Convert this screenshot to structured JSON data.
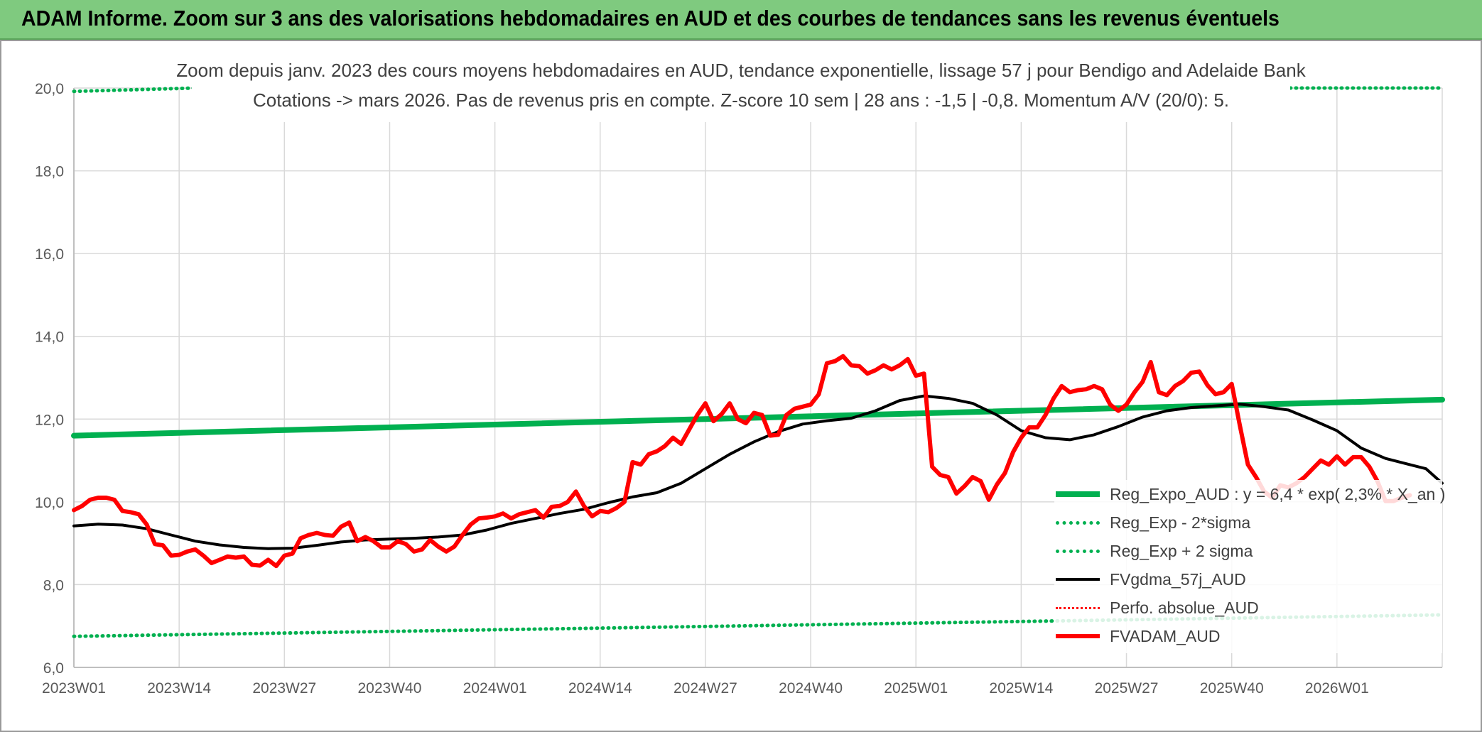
{
  "banner": {
    "title": "ADAM Informe. Zoom sur 3 ans des valorisations hebdomadaires en AUD et des courbes de tendances sans les revenus éventuels"
  },
  "colors": {
    "banner_bg": "#7fca7f",
    "reg_expo": "#00b050",
    "fvgdma": "#000000",
    "perfo": "#ff0000",
    "fvadam": "#ff0000",
    "grid": "#d9d9d9"
  },
  "chart_data": {
    "type": "line",
    "title_line1": "Zoom depuis janv. 2023 des cours moyens hebdomadaires en AUD, tendance exponentielle, lissage 57 j pour Bendigo and Adelaide Bank",
    "title_line2": "Cotations -> mars 2026. Pas de revenus pris en compte. Z-score 10 sem | 28 ans : -1,5 | -0,8. Momentum A/V (20/0): 5.",
    "xlabel": "",
    "ylabel": "",
    "ylim": [
      6.0,
      20.0
    ],
    "yticks": [
      "20,0",
      "18,0",
      "16,0",
      "14,0",
      "12,0",
      "10,0",
      "8,0",
      "6,0"
    ],
    "xticks": [
      "2023W01",
      "2023W14",
      "2023W27",
      "2023W40",
      "2024W01",
      "2024W14",
      "2024W27",
      "2024W40",
      "2025W01",
      "2025W14",
      "2025W27",
      "2025W40",
      "2026W01"
    ],
    "x_range_weeks": [
      0,
      169
    ],
    "grid": true,
    "legend_position": "bottom-right",
    "series": [
      {
        "name": "Reg_Expo_AUD : y = 6,4 * exp( 2,3% *  X_an )",
        "style": "solid-thick",
        "points": [
          [
            0,
            11.6
          ],
          [
            169,
            12.47
          ]
        ]
      },
      {
        "name": "Reg_Exp - 2*sigma",
        "style": "dotted",
        "points": [
          [
            0,
            6.75
          ],
          [
            169,
            7.27
          ]
        ]
      },
      {
        "name": "Reg_Exp + 2 sigma",
        "style": "dotted",
        "points": [
          [
            0,
            19.92
          ],
          [
            15,
            20.0
          ],
          [
            169,
            20.0
          ]
        ]
      },
      {
        "name": "FVgdma_57j_AUD",
        "style": "solid",
        "points": [
          [
            0,
            9.42
          ],
          [
            3,
            9.46
          ],
          [
            6,
            9.44
          ],
          [
            9,
            9.35
          ],
          [
            12,
            9.2
          ],
          [
            15,
            9.05
          ],
          [
            18,
            8.96
          ],
          [
            21,
            8.9
          ],
          [
            24,
            8.87
          ],
          [
            27,
            8.88
          ],
          [
            30,
            8.95
          ],
          [
            33,
            9.03
          ],
          [
            36,
            9.08
          ],
          [
            39,
            9.1
          ],
          [
            42,
            9.12
          ],
          [
            45,
            9.15
          ],
          [
            48,
            9.2
          ],
          [
            51,
            9.32
          ],
          [
            54,
            9.48
          ],
          [
            57,
            9.6
          ],
          [
            60,
            9.72
          ],
          [
            63,
            9.82
          ],
          [
            66,
            9.98
          ],
          [
            69,
            10.12
          ],
          [
            72,
            10.22
          ],
          [
            75,
            10.45
          ],
          [
            78,
            10.8
          ],
          [
            81,
            11.15
          ],
          [
            84,
            11.45
          ],
          [
            87,
            11.7
          ],
          [
            90,
            11.88
          ],
          [
            93,
            11.96
          ],
          [
            96,
            12.02
          ],
          [
            99,
            12.2
          ],
          [
            102,
            12.45
          ],
          [
            105,
            12.56
          ],
          [
            108,
            12.5
          ],
          [
            111,
            12.38
          ],
          [
            114,
            12.1
          ],
          [
            117,
            11.72
          ],
          [
            120,
            11.55
          ],
          [
            123,
            11.5
          ],
          [
            126,
            11.62
          ],
          [
            129,
            11.82
          ],
          [
            132,
            12.05
          ],
          [
            135,
            12.2
          ],
          [
            138,
            12.28
          ],
          [
            141,
            12.32
          ],
          [
            144,
            12.36
          ],
          [
            147,
            12.3
          ],
          [
            150,
            12.22
          ],
          [
            153,
            11.98
          ],
          [
            156,
            11.72
          ],
          [
            159,
            11.3
          ],
          [
            162,
            11.05
          ],
          [
            165,
            10.9
          ],
          [
            167,
            10.8
          ],
          [
            169,
            10.45
          ]
        ]
      },
      {
        "name": "Perfo. absolue_AUD",
        "style": "dotted",
        "points": []
      },
      {
        "name": "FVADAM_AUD",
        "style": "solid-thick",
        "points": [
          [
            0,
            9.8
          ],
          [
            1,
            9.9
          ],
          [
            2,
            10.05
          ],
          [
            3,
            10.1
          ],
          [
            4,
            10.1
          ],
          [
            5,
            10.05
          ],
          [
            6,
            9.78
          ],
          [
            7,
            9.75
          ],
          [
            8,
            9.7
          ],
          [
            9,
            9.45
          ],
          [
            10,
            8.98
          ],
          [
            11,
            8.95
          ],
          [
            12,
            8.7
          ],
          [
            13,
            8.72
          ],
          [
            14,
            8.8
          ],
          [
            15,
            8.85
          ],
          [
            16,
            8.7
          ],
          [
            17,
            8.52
          ],
          [
            18,
            8.6
          ],
          [
            19,
            8.68
          ],
          [
            20,
            8.65
          ],
          [
            21,
            8.68
          ],
          [
            22,
            8.48
          ],
          [
            23,
            8.46
          ],
          [
            24,
            8.6
          ],
          [
            25,
            8.45
          ],
          [
            26,
            8.7
          ],
          [
            27,
            8.75
          ],
          [
            28,
            9.12
          ],
          [
            29,
            9.2
          ],
          [
            30,
            9.25
          ],
          [
            31,
            9.2
          ],
          [
            32,
            9.18
          ],
          [
            33,
            9.4
          ],
          [
            34,
            9.5
          ],
          [
            35,
            9.05
          ],
          [
            36,
            9.15
          ],
          [
            37,
            9.05
          ],
          [
            38,
            8.9
          ],
          [
            39,
            8.9
          ],
          [
            40,
            9.05
          ],
          [
            41,
            8.98
          ],
          [
            42,
            8.8
          ],
          [
            43,
            8.85
          ],
          [
            44,
            9.08
          ],
          [
            45,
            8.92
          ],
          [
            46,
            8.8
          ],
          [
            47,
            8.92
          ],
          [
            48,
            9.2
          ],
          [
            49,
            9.45
          ],
          [
            50,
            9.6
          ],
          [
            51,
            9.62
          ],
          [
            52,
            9.65
          ],
          [
            53,
            9.72
          ],
          [
            54,
            9.6
          ],
          [
            55,
            9.7
          ],
          [
            56,
            9.75
          ],
          [
            57,
            9.8
          ],
          [
            58,
            9.62
          ],
          [
            59,
            9.88
          ],
          [
            60,
            9.9
          ],
          [
            61,
            10.0
          ],
          [
            62,
            10.25
          ],
          [
            63,
            9.9
          ],
          [
            64,
            9.65
          ],
          [
            65,
            9.78
          ],
          [
            66,
            9.75
          ],
          [
            67,
            9.85
          ],
          [
            68,
            10.0
          ],
          [
            69,
            10.96
          ],
          [
            70,
            10.9
          ],
          [
            71,
            11.15
          ],
          [
            72,
            11.22
          ],
          [
            73,
            11.35
          ],
          [
            74,
            11.55
          ],
          [
            75,
            11.4
          ],
          [
            76,
            11.75
          ],
          [
            77,
            12.1
          ],
          [
            78,
            12.38
          ],
          [
            79,
            11.95
          ],
          [
            80,
            12.12
          ],
          [
            81,
            12.38
          ],
          [
            82,
            12.0
          ],
          [
            83,
            11.9
          ],
          [
            84,
            12.15
          ],
          [
            85,
            12.1
          ],
          [
            86,
            11.6
          ],
          [
            87,
            11.62
          ],
          [
            88,
            12.1
          ],
          [
            89,
            12.25
          ],
          [
            90,
            12.3
          ],
          [
            91,
            12.35
          ],
          [
            92,
            12.6
          ],
          [
            93,
            13.35
          ],
          [
            94,
            13.4
          ],
          [
            95,
            13.52
          ],
          [
            96,
            13.3
          ],
          [
            97,
            13.28
          ],
          [
            98,
            13.1
          ],
          [
            99,
            13.18
          ],
          [
            100,
            13.3
          ],
          [
            101,
            13.2
          ],
          [
            102,
            13.3
          ],
          [
            103,
            13.45
          ],
          [
            104,
            13.05
          ],
          [
            105,
            13.1
          ],
          [
            106,
            10.85
          ],
          [
            107,
            10.65
          ],
          [
            108,
            10.6
          ],
          [
            109,
            10.2
          ],
          [
            110,
            10.38
          ],
          [
            111,
            10.6
          ],
          [
            112,
            10.5
          ],
          [
            113,
            10.05
          ],
          [
            114,
            10.42
          ],
          [
            115,
            10.7
          ],
          [
            116,
            11.2
          ],
          [
            117,
            11.55
          ],
          [
            118,
            11.8
          ],
          [
            119,
            11.8
          ],
          [
            120,
            12.1
          ],
          [
            121,
            12.5
          ],
          [
            122,
            12.8
          ],
          [
            123,
            12.65
          ],
          [
            124,
            12.7
          ],
          [
            125,
            12.72
          ],
          [
            126,
            12.8
          ],
          [
            127,
            12.72
          ],
          [
            128,
            12.35
          ],
          [
            129,
            12.2
          ],
          [
            130,
            12.35
          ],
          [
            131,
            12.65
          ],
          [
            132,
            12.9
          ],
          [
            133,
            13.38
          ],
          [
            134,
            12.65
          ],
          [
            135,
            12.58
          ],
          [
            136,
            12.8
          ],
          [
            137,
            12.92
          ],
          [
            138,
            13.12
          ],
          [
            139,
            13.15
          ],
          [
            140,
            12.82
          ],
          [
            141,
            12.6
          ],
          [
            142,
            12.65
          ],
          [
            143,
            12.85
          ],
          [
            144,
            11.85
          ],
          [
            145,
            10.9
          ],
          [
            146,
            10.6
          ],
          [
            147,
            10.25
          ],
          [
            148,
            10.1
          ],
          [
            149,
            10.4
          ],
          [
            150,
            10.35
          ],
          [
            151,
            10.45
          ],
          [
            152,
            10.6
          ],
          [
            153,
            10.8
          ],
          [
            154,
            11.0
          ],
          [
            155,
            10.9
          ],
          [
            156,
            11.1
          ],
          [
            157,
            10.9
          ],
          [
            158,
            11.08
          ],
          [
            159,
            11.08
          ],
          [
            160,
            10.85
          ],
          [
            161,
            10.5
          ],
          [
            162,
            10.02
          ],
          [
            163,
            10.02
          ],
          [
            164,
            10.1
          ],
          [
            165,
            10.16
          ]
        ]
      }
    ]
  }
}
